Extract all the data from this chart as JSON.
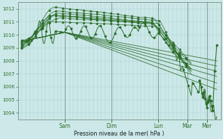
{
  "xlabel": "Pression niveau de la mer( hPa )",
  "ylim": [
    1003.5,
    1012.5
  ],
  "yticks": [
    1004,
    1005,
    1006,
    1007,
    1008,
    1009,
    1010,
    1011,
    1012
  ],
  "day_labels": [
    "Sam",
    "Dim",
    "Lun",
    "Mar",
    "Mer"
  ],
  "day_positions": [
    0.22,
    0.46,
    0.7,
    0.85,
    0.95
  ],
  "bg_color": "#cce8e8",
  "grid_color": "#aacccc",
  "line_color": "#2d6e2d",
  "fig_bg": "#cce8e8",
  "xlim": [
    -0.02,
    1.02
  ]
}
